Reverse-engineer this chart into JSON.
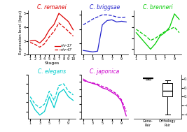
{
  "title_remanei": "C. remanei",
  "title_briggsae": "C. briggsae",
  "title_brenneri": "C. brenneri",
  "title_elegans": "C. elegans",
  "title_japonica": "C. japonica",
  "color_remanei": "#dd0000",
  "color_briggsae": "#2222cc",
  "color_brenneri": "#00cc00",
  "color_elegans": "#00cccc",
  "color_japonica": "#cc00cc",
  "legend_solid": "nhr-17",
  "legend_dashed": "nhr-47",
  "xlabel": "Stages",
  "ylabel": "Expression level (log₁₀)",
  "stages": [
    1,
    2,
    3,
    4,
    5,
    6,
    7,
    8,
    9,
    10
  ],
  "remanei_solid": [
    3.0,
    3.05,
    2.85,
    3.2,
    3.8,
    4.2,
    5.0,
    4.7,
    4.4,
    3.8
  ],
  "remanei_dashed": [
    2.9,
    2.75,
    2.55,
    2.8,
    3.3,
    3.7,
    4.3,
    4.0,
    3.7,
    3.35
  ],
  "briggsae_solid": [
    2.5,
    2.45,
    2.4,
    2.45,
    4.3,
    4.6,
    4.65,
    4.5,
    4.55,
    4.5
  ],
  "briggsae_dashed": [
    4.3,
    4.5,
    4.7,
    4.85,
    5.0,
    5.0,
    4.95,
    4.85,
    4.8,
    4.85
  ],
  "brenneri_solid": [
    3.5,
    3.0,
    2.5,
    2.0,
    2.5,
    3.2,
    3.5,
    4.0,
    5.2,
    4.7
  ],
  "brenneri_dashed": [
    3.8,
    3.5,
    3.2,
    2.8,
    3.0,
    3.3,
    3.6,
    3.8,
    4.0,
    3.5
  ],
  "elegans_solid": [
    3.3,
    3.05,
    2.9,
    3.0,
    3.4,
    3.1,
    3.5,
    3.6,
    3.4,
    3.3
  ],
  "elegans_dashed": [
    3.4,
    3.2,
    3.1,
    3.2,
    3.55,
    3.3,
    3.7,
    3.75,
    3.55,
    3.45
  ],
  "japonica_solid": [
    3.85,
    3.75,
    3.7,
    3.65,
    3.55,
    3.5,
    3.4,
    3.3,
    3.1,
    2.6
  ],
  "japonica_dashed": [
    3.8,
    3.75,
    3.72,
    3.68,
    3.6,
    3.55,
    3.45,
    3.35,
    3.15,
    2.75
  ],
  "box_gene_pair": {
    "median": 0.85,
    "q1": 0.83,
    "q3": 0.87,
    "whislo": 0.78,
    "whishi": 0.88
  },
  "box_orthology": {
    "median": 0.27,
    "q1": 0.02,
    "q3": 0.6,
    "whislo": -0.82,
    "whishi": 0.73
  },
  "corr_ylim": [
    -1.0,
    1.0
  ],
  "corr_yticks": [
    -0.8,
    -0.4,
    0.0,
    0.4,
    0.8
  ],
  "box_labels": [
    "Gene-\nPair",
    "Orthology\nPair"
  ],
  "remanei_ylim": [
    2.0,
    5.2
  ],
  "briggsae_ylim": [
    2.2,
    5.3
  ],
  "brenneri_ylim": [
    1.5,
    5.5
  ],
  "elegans_ylim": [
    2.8,
    4.0
  ],
  "japonica_ylim": [
    2.5,
    4.0
  ]
}
